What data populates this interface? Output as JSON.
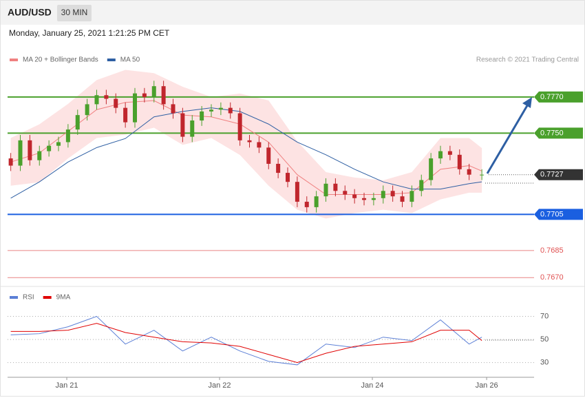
{
  "chart_data": [
    {
      "type": "candlestick",
      "title": "AUD/USD",
      "timeframe": "30 MIN",
      "timestamp": "Monday, January 25, 2021 1:21:25 PM CET",
      "credit": "Research © 2021 Trading Central",
      "x": [
        1,
        4,
        7,
        10,
        13,
        16,
        19,
        22,
        25,
        28,
        31,
        34,
        37,
        40,
        43,
        46,
        49,
        52,
        55,
        58,
        61,
        64,
        67,
        70,
        73,
        76,
        79,
        82,
        85,
        88,
        91,
        94,
        97,
        100,
        103,
        106,
        109,
        112,
        115,
        118,
        121,
        124,
        127,
        130,
        133,
        136,
        139,
        142,
        145,
        149
      ],
      "open": [
        0.7736,
        0.7732,
        0.7746,
        0.7735,
        0.774,
        0.7743,
        0.7745,
        0.7752,
        0.776,
        0.7766,
        0.7771,
        0.7769,
        0.7764,
        0.7756,
        0.7772,
        0.777,
        0.7776,
        0.7766,
        0.7761,
        0.7748,
        0.7757,
        0.7762,
        0.7763,
        0.7764,
        0.7761,
        0.7746,
        0.7745,
        0.7742,
        0.7733,
        0.7728,
        0.7723,
        0.7712,
        0.7709,
        0.7715,
        0.7722,
        0.7718,
        0.7716,
        0.7714,
        0.7713,
        0.7714,
        0.7718,
        0.7715,
        0.7712,
        0.7718,
        0.7724,
        0.7736,
        0.774,
        0.7738,
        0.773,
        0.7727
      ],
      "high": [
        0.7739,
        0.7749,
        0.7749,
        0.7743,
        0.7746,
        0.7748,
        0.7755,
        0.7763,
        0.7769,
        0.7774,
        0.7774,
        0.7772,
        0.7767,
        0.7775,
        0.7775,
        0.7779,
        0.7779,
        0.7769,
        0.7764,
        0.776,
        0.7765,
        0.7766,
        0.7767,
        0.7767,
        0.7764,
        0.7749,
        0.7748,
        0.7745,
        0.7736,
        0.7731,
        0.7726,
        0.7715,
        0.7718,
        0.7725,
        0.7725,
        0.7721,
        0.7719,
        0.7717,
        0.7717,
        0.7721,
        0.7721,
        0.7718,
        0.7721,
        0.7727,
        0.7739,
        0.7743,
        0.7743,
        0.7741,
        0.7733,
        0.773
      ],
      "low": [
        0.7729,
        0.7729,
        0.7732,
        0.7732,
        0.7737,
        0.774,
        0.7742,
        0.7749,
        0.7757,
        0.7763,
        0.7766,
        0.7761,
        0.7753,
        0.7753,
        0.7767,
        0.7767,
        0.7763,
        0.7758,
        0.7745,
        0.7745,
        0.7754,
        0.7759,
        0.776,
        0.7758,
        0.7743,
        0.7742,
        0.7739,
        0.773,
        0.7725,
        0.772,
        0.7709,
        0.7706,
        0.7706,
        0.7712,
        0.7715,
        0.7713,
        0.7711,
        0.771,
        0.771,
        0.7711,
        0.7712,
        0.7709,
        0.7709,
        0.7715,
        0.7721,
        0.7733,
        0.7735,
        0.7727,
        0.7724,
        0.7724
      ],
      "close": [
        0.7732,
        0.7746,
        0.7735,
        0.774,
        0.7743,
        0.7745,
        0.7752,
        0.776,
        0.7766,
        0.7771,
        0.7769,
        0.7764,
        0.7756,
        0.7772,
        0.777,
        0.7776,
        0.7766,
        0.7761,
        0.7748,
        0.7757,
        0.7762,
        0.7763,
        0.7764,
        0.7761,
        0.7746,
        0.7745,
        0.7742,
        0.7733,
        0.7728,
        0.7723,
        0.7712,
        0.7709,
        0.7715,
        0.7722,
        0.7718,
        0.7716,
        0.7714,
        0.7713,
        0.7714,
        0.7718,
        0.7715,
        0.7712,
        0.7718,
        0.7724,
        0.7736,
        0.774,
        0.7738,
        0.773,
        0.7727,
        0.7727
      ],
      "up_color": "#4aa02c",
      "down_color": "#c0262d",
      "xlim": [
        0,
        165.4
      ],
      "ylim": [
        0.76655,
        0.77875
      ],
      "overlays": {
        "x": [
          1,
          10,
          19,
          28,
          37,
          46,
          55,
          64,
          73,
          82,
          91,
          100,
          109,
          118,
          127,
          136,
          145,
          149
        ],
        "series": [
          {
            "name": "MA 20 + Bollinger Bands",
            "color": "#f08080",
            "band_color": "#fde3e3",
            "values": [
              0.7734,
              0.7739,
              0.7751,
              0.7763,
              0.7767,
              0.7768,
              0.776,
              0.7759,
              0.7755,
              0.7745,
              0.7727,
              0.7716,
              0.7716,
              0.7716,
              0.7717,
              0.773,
              0.7732,
              0.7729
            ],
            "upper": [
              0.77473,
              0.77549,
              0.77662,
              0.77794,
              0.7785,
              0.77832,
              0.77757,
              0.777,
              0.77719,
              0.77681,
              0.77454,
              0.77284,
              0.77254,
              0.77239,
              0.77284,
              0.77473,
              0.77473,
              0.77417
            ],
            "lower": [
              0.77209,
              0.77228,
              0.7736,
              0.77473,
              0.77492,
              0.7753,
              0.77435,
              0.77473,
              0.77379,
              0.77209,
              0.77076,
              0.77027,
              0.77057,
              0.77076,
              0.77057,
              0.77133,
              0.7717,
              0.7717
            ]
          },
          {
            "name": "MA 50",
            "color": "#2e5fa3",
            "values": [
              0.7714,
              0.7723,
              0.7734,
              0.7742,
              0.7747,
              0.7759,
              0.7762,
              0.7764,
              0.7762,
              0.7755,
              0.7745,
              0.7738,
              0.773,
              0.7723,
              0.7719,
              0.7719,
              0.7722,
              0.7723
            ]
          }
        ]
      },
      "levels": [
        {
          "value": 0.777,
          "label": "0.7770",
          "color": "#4aa02c",
          "kind": "flag"
        },
        {
          "value": 0.775,
          "label": "0.7750",
          "color": "#4aa02c",
          "kind": "flag"
        },
        {
          "value": 0.7727,
          "label": "0.7727",
          "color": "#333333",
          "kind": "current"
        },
        {
          "value": 0.7705,
          "label": "0.7705",
          "color": "#1a5fe0",
          "kind": "flag"
        },
        {
          "value": 0.7685,
          "label": "0.7685",
          "color": "#e05050",
          "kind": "text"
        },
        {
          "value": 0.767,
          "label": "0.7670",
          "color": "#e05050",
          "kind": "text"
        }
      ]
    },
    {
      "type": "line",
      "x": [
        1,
        10,
        19,
        28,
        37,
        46,
        55,
        64,
        73,
        82,
        91,
        100,
        109,
        118,
        127,
        136,
        145,
        149
      ],
      "series": [
        {
          "name": "RSI",
          "color": "#5b7fd6",
          "values": [
            54,
            55,
            61,
            70,
            46,
            58,
            40,
            52,
            40,
            31,
            28,
            46,
            43,
            52,
            49,
            67,
            46,
            52
          ]
        },
        {
          "name": "9MA",
          "color": "#e00000",
          "values": [
            57,
            57,
            58,
            64,
            56,
            52,
            48,
            47,
            44,
            37,
            30,
            38,
            44,
            46,
            48,
            58,
            58,
            49
          ]
        }
      ],
      "xlim": [
        0,
        165.4
      ],
      "ylim": [
        19,
        96
      ],
      "yticks": [
        70,
        50,
        30
      ],
      "xticks": [
        {
          "value": 18.6,
          "label": "Jan 21"
        },
        {
          "value": 66.6,
          "label": "Jan 22"
        },
        {
          "value": 114.6,
          "label": "Jan 24"
        },
        {
          "value": 150.5,
          "label": "Jan 26"
        }
      ]
    }
  ]
}
